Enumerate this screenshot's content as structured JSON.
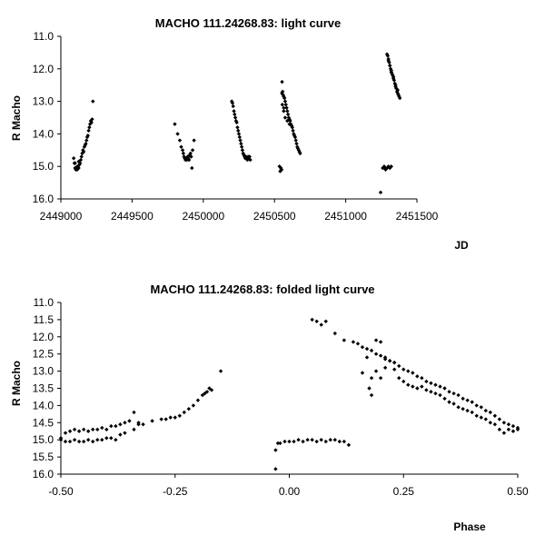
{
  "chart_data": [
    {
      "type": "scatter",
      "title": "MACHO 111.24268.83: light curve",
      "xlabel": "JD",
      "ylabel": "R Macho",
      "xlim": [
        2449000,
        2451500
      ],
      "ylim": [
        11.0,
        16.0
      ],
      "y_inverted": true,
      "xticks": [
        "2449000",
        "2449500",
        "2450000",
        "2450500",
        "2451000",
        "2451500"
      ],
      "yticks": [
        "11.0",
        "12.0",
        "13.0",
        "14.0",
        "15.0",
        "16.0"
      ],
      "grid": false,
      "series": [
        {
          "x": [
            2449090,
            2449095,
            2449100,
            2449105,
            2449110,
            2449115,
            2449120,
            2449125,
            2449130,
            2449135,
            2449140,
            2449145,
            2449150,
            2449155,
            2449160,
            2449165,
            2449170,
            2449175,
            2449180,
            2449185,
            2449190,
            2449195,
            2449200,
            2449205,
            2449210,
            2449215,
            2449220,
            2449225,
            2449100,
            2449115,
            2449125,
            2449800,
            2449820,
            2449835,
            2449845,
            2449855,
            2449860,
            2449865,
            2449870,
            2449875,
            2449880,
            2449885,
            2449890,
            2449895,
            2449900,
            2449905,
            2449910,
            2449915,
            2449920,
            2449925,
            2449935,
            2450200,
            2450205,
            2450210,
            2450215,
            2450220,
            2450225,
            2450230,
            2450235,
            2450240,
            2450245,
            2450250,
            2450255,
            2450260,
            2450265,
            2450270,
            2450275,
            2450280,
            2450285,
            2450290,
            2450295,
            2450300,
            2450305,
            2450310,
            2450315,
            2450320,
            2450325,
            2450330,
            2450535,
            2450545,
            2450550,
            2450553,
            2450557,
            2450560,
            2450565,
            2450570,
            2450575,
            2450580,
            2450585,
            2450590,
            2450595,
            2450600,
            2450605,
            2450610,
            2450615,
            2450620,
            2450625,
            2450630,
            2450635,
            2450640,
            2450645,
            2450650,
            2450655,
            2450660,
            2450665,
            2450670,
            2450675,
            2450680,
            2450555,
            2450565,
            2450575,
            2450590,
            2450605,
            2450620,
            2450540,
            2450548,
            2450552,
            2450565,
            2451245,
            2451260,
            2451270,
            2451275,
            2451280,
            2451290,
            2451300,
            2451310,
            2451320,
            2451290,
            2451295,
            2451300,
            2451305,
            2451310,
            2451315,
            2451320,
            2451325,
            2451330,
            2451335,
            2451340,
            2451345,
            2451350,
            2451355,
            2451360,
            2451365,
            2451370,
            2451375,
            2451380,
            2451300,
            2451310,
            2451320,
            2451335,
            2451350,
            2451365
          ],
          "y": [
            14.75,
            14.9,
            15.05,
            15.1,
            15.05,
            15.1,
            15.0,
            15.05,
            14.95,
            14.9,
            14.8,
            14.7,
            14.6,
            14.5,
            14.55,
            14.4,
            14.35,
            14.3,
            14.2,
            14.1,
            14.05,
            13.9,
            13.8,
            13.7,
            13.6,
            13.65,
            13.55,
            13.0,
            14.9,
            15.0,
            14.85,
            13.7,
            14.0,
            14.2,
            14.4,
            14.5,
            14.6,
            14.7,
            14.75,
            14.8,
            14.75,
            14.8,
            14.7,
            14.75,
            14.8,
            14.65,
            14.6,
            14.7,
            15.05,
            14.5,
            14.2,
            13.0,
            13.05,
            13.15,
            13.3,
            13.4,
            13.5,
            13.6,
            13.65,
            13.8,
            13.9,
            14.0,
            14.1,
            14.2,
            14.3,
            14.4,
            14.5,
            14.6,
            14.65,
            14.7,
            14.75,
            14.7,
            14.75,
            14.8,
            14.7,
            14.75,
            14.7,
            14.8,
            15.0,
            15.05,
            15.1,
            12.4,
            12.7,
            12.8,
            12.85,
            12.9,
            13.0,
            13.1,
            13.2,
            13.3,
            13.4,
            13.5,
            13.55,
            13.6,
            13.7,
            13.75,
            13.8,
            13.9,
            14.0,
            14.05,
            14.1,
            14.2,
            14.3,
            14.4,
            14.45,
            14.5,
            14.55,
            14.6,
            13.1,
            13.3,
            13.5,
            13.6,
            13.7,
            13.75,
            15.15,
            15.1,
            12.75,
            13.2,
            15.8,
            15.05,
            15.0,
            15.05,
            15.1,
            15.05,
            15.0,
            15.05,
            15.0,
            11.55,
            11.6,
            11.7,
            11.8,
            11.9,
            12.0,
            12.05,
            12.15,
            12.2,
            12.3,
            12.35,
            12.45,
            12.55,
            12.6,
            12.7,
            12.75,
            12.8,
            12.85,
            12.9,
            11.75,
            11.9,
            12.1,
            12.25,
            12.5,
            12.65
          ]
        }
      ]
    },
    {
      "type": "scatter",
      "title": "MACHO 111.24268.83: folded light curve",
      "xlabel": "Phase",
      "ylabel": "R Macho",
      "xlim": [
        -0.5,
        0.5
      ],
      "ylim": [
        11.0,
        16.0
      ],
      "y_inverted": true,
      "xticks": [
        "-0.50",
        "-0.25",
        "0.00",
        "0.25",
        "0.50"
      ],
      "yticks": [
        "11.0",
        "11.5",
        "12.0",
        "12.5",
        "13.0",
        "13.5",
        "14.0",
        "14.5",
        "15.0",
        "15.5",
        "16.0"
      ],
      "grid": false,
      "series": [
        {
          "x": [
            -0.5,
            -0.49,
            -0.48,
            -0.47,
            -0.46,
            -0.45,
            -0.44,
            -0.43,
            -0.42,
            -0.41,
            -0.4,
            -0.39,
            -0.38,
            -0.37,
            -0.36,
            -0.35,
            -0.34,
            -0.33,
            -0.5,
            -0.49,
            -0.48,
            -0.47,
            -0.46,
            -0.45,
            -0.44,
            -0.43,
            -0.42,
            -0.41,
            -0.4,
            -0.39,
            -0.38,
            -0.37,
            -0.36,
            -0.34,
            -0.32,
            -0.3,
            -0.28,
            -0.27,
            -0.26,
            -0.25,
            -0.24,
            -0.23,
            -0.22,
            -0.21,
            -0.2,
            -0.19,
            -0.18,
            -0.17,
            -0.185,
            -0.175,
            -0.15,
            -0.33,
            -0.03,
            -0.025,
            -0.02,
            -0.01,
            0.0,
            0.01,
            0.02,
            0.03,
            0.04,
            0.05,
            0.06,
            0.07,
            0.08,
            0.09,
            0.1,
            0.11,
            0.12,
            0.13,
            -0.03,
            0.05,
            0.06,
            0.07,
            0.08,
            0.1,
            0.12,
            0.14,
            0.15,
            0.16,
            0.17,
            0.18,
            0.19,
            0.2,
            0.21,
            0.22,
            0.23,
            0.24,
            0.25,
            0.26,
            0.27,
            0.28,
            0.29,
            0.3,
            0.31,
            0.32,
            0.33,
            0.34,
            0.35,
            0.36,
            0.37,
            0.38,
            0.39,
            0.4,
            0.41,
            0.42,
            0.43,
            0.44,
            0.45,
            0.46,
            0.47,
            0.48,
            0.49,
            0.5,
            0.17,
            0.175,
            0.18,
            0.19,
            0.2,
            0.21,
            0.22,
            0.23,
            0.24,
            0.25,
            0.26,
            0.27,
            0.28,
            0.29,
            0.3,
            0.31,
            0.32,
            0.33,
            0.34,
            0.35,
            0.36,
            0.37,
            0.38,
            0.39,
            0.4,
            0.41,
            0.42,
            0.43,
            0.44,
            0.45,
            0.46,
            0.47,
            0.48,
            0.49,
            0.5,
            0.19,
            0.2,
            0.21,
            0.23,
            0.18,
            0.16
          ],
          "y": [
            14.95,
            14.8,
            14.75,
            14.7,
            14.75,
            14.7,
            14.75,
            14.7,
            14.7,
            14.65,
            14.7,
            14.6,
            14.6,
            14.55,
            14.5,
            14.45,
            14.2,
            14.5,
            15.0,
            15.05,
            15.05,
            15.0,
            15.05,
            15.05,
            15.0,
            15.05,
            15.0,
            15.0,
            14.95,
            14.95,
            15.0,
            14.85,
            14.8,
            14.7,
            14.55,
            14.45,
            14.4,
            14.4,
            14.35,
            14.35,
            14.3,
            14.2,
            14.1,
            14.0,
            13.85,
            13.7,
            13.6,
            13.55,
            13.65,
            13.5,
            13.0,
            14.55,
            15.3,
            15.1,
            15.1,
            15.05,
            15.05,
            15.05,
            15.0,
            15.05,
            15.0,
            15.0,
            15.05,
            15.0,
            15.05,
            15.0,
            15.0,
            15.05,
            15.05,
            15.15,
            15.85,
            11.5,
            11.55,
            11.65,
            11.55,
            11.9,
            12.1,
            12.15,
            12.2,
            12.3,
            12.35,
            12.4,
            12.5,
            12.55,
            12.6,
            12.7,
            12.75,
            12.85,
            12.95,
            13.0,
            13.05,
            13.15,
            13.2,
            13.3,
            13.35,
            13.4,
            13.45,
            13.5,
            13.6,
            13.65,
            13.7,
            13.8,
            13.85,
            13.9,
            14.0,
            14.05,
            14.15,
            14.2,
            14.3,
            14.4,
            14.5,
            14.55,
            14.6,
            14.7,
            12.6,
            13.5,
            13.2,
            13.0,
            13.2,
            12.9,
            12.7,
            12.95,
            13.2,
            13.3,
            13.4,
            13.45,
            13.5,
            13.45,
            13.55,
            13.6,
            13.65,
            13.7,
            13.8,
            13.9,
            13.95,
            14.05,
            14.1,
            14.15,
            14.2,
            14.3,
            14.35,
            14.4,
            14.5,
            14.55,
            14.7,
            14.8,
            14.7,
            14.75,
            14.65,
            12.1,
            12.15,
            12.65,
            12.75,
            13.7,
            13.05
          ]
        }
      ]
    }
  ]
}
